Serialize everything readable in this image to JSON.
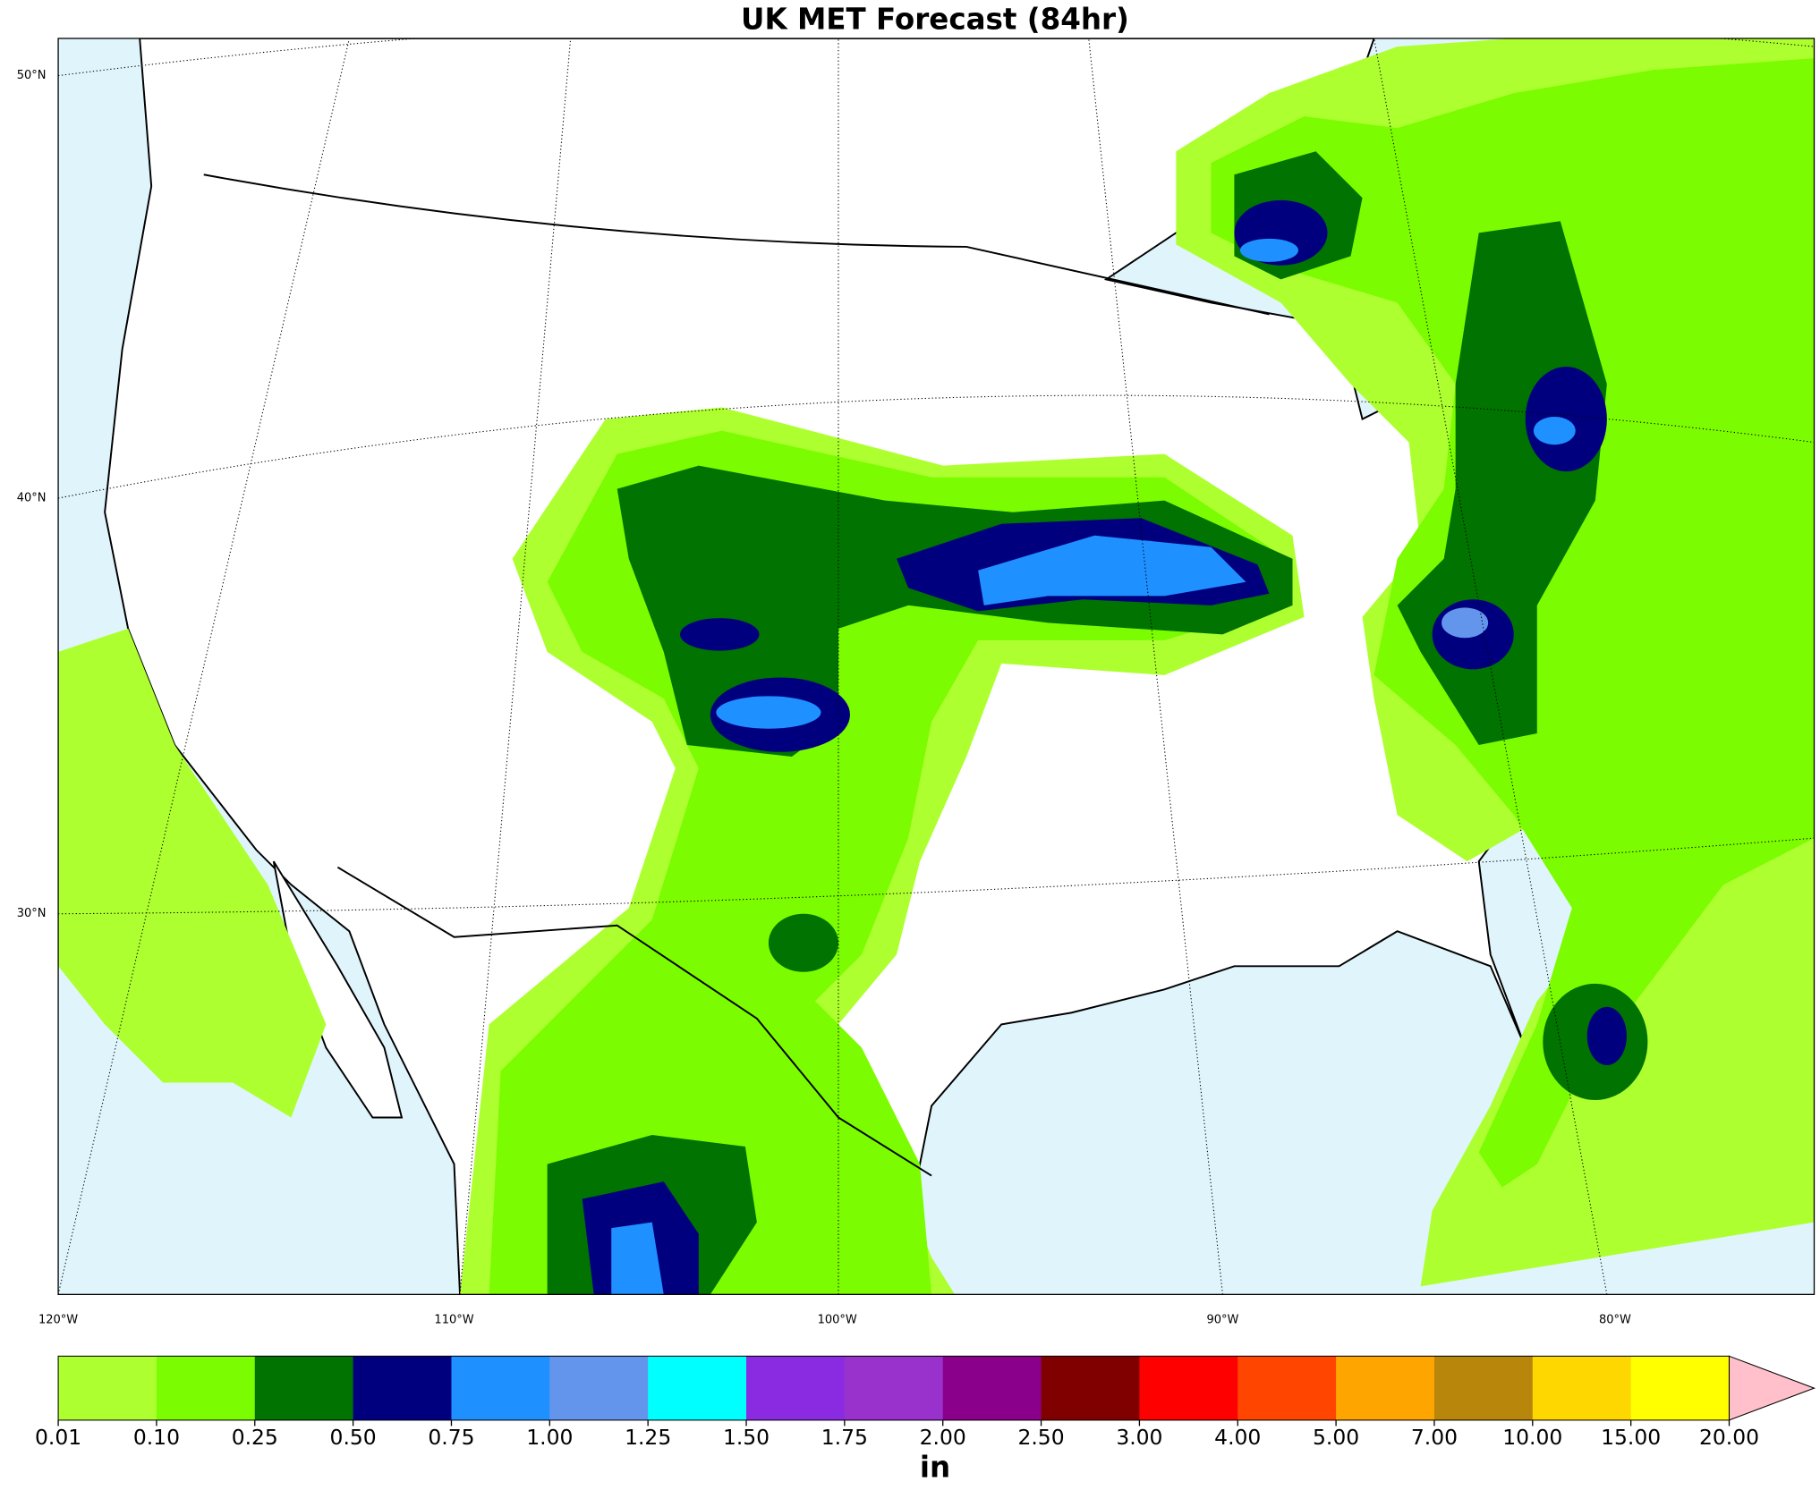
{
  "header": {
    "title": "UK MET Forecast (84hr)"
  },
  "map": {
    "lat_labels": [
      "50°N",
      "40°N",
      "30°N"
    ],
    "lon_labels": [
      "120°W",
      "110°W",
      "100°W",
      "90°W",
      "80°W"
    ]
  },
  "colorbar": {
    "levels": [
      "0.01",
      "0.10",
      "0.25",
      "0.50",
      "0.75",
      "1.00",
      "1.25",
      "1.50",
      "1.75",
      "2.00",
      "2.50",
      "3.00",
      "4.00",
      "5.00",
      "7.00",
      "10.00",
      "15.00",
      "20.00"
    ],
    "colors": [
      "#adff2f",
      "#7cfc00",
      "#007300",
      "#00007f",
      "#1e90ff",
      "#6495ed",
      "#00ffff",
      "#8a2be2",
      "#9932cc",
      "#8b008b",
      "#800000",
      "#ff0000",
      "#ff4500",
      "#ffa500",
      "#b8860b",
      "#ffd700",
      "#ffff00"
    ],
    "extend_color": "#ffc0cb",
    "unit": "in"
  }
}
